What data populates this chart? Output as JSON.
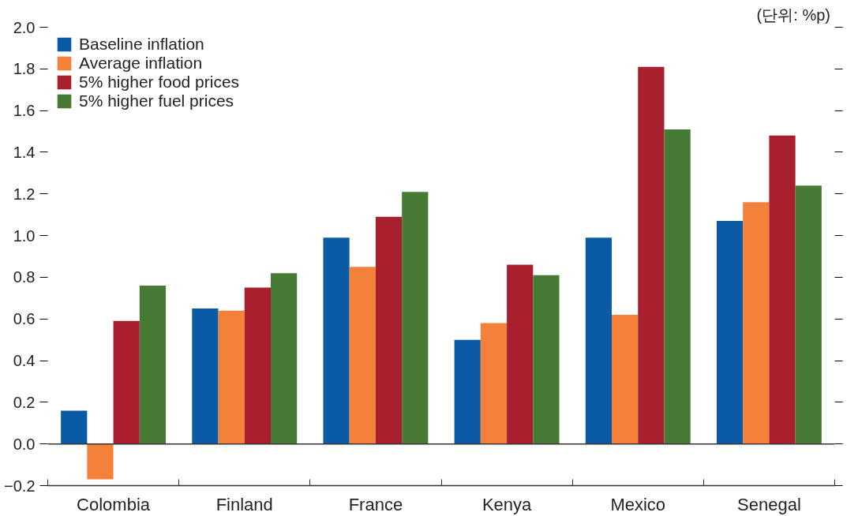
{
  "chart_data": {
    "type": "bar",
    "categories": [
      "Colombia",
      "Finland",
      "France",
      "Kenya",
      "Mexico",
      "Senegal"
    ],
    "series": [
      {
        "name": "Baseline inflation",
        "color": "#0a5aa6",
        "values": [
          0.16,
          0.65,
          0.99,
          0.5,
          0.99,
          1.07
        ]
      },
      {
        "name": "Average inflation",
        "color": "#f4813a",
        "values": [
          -0.17,
          0.64,
          0.85,
          0.58,
          0.62,
          1.16
        ]
      },
      {
        "name": "5% higher food prices",
        "color": "#a81f2d",
        "values": [
          0.59,
          0.75,
          1.09,
          0.86,
          1.81,
          1.48
        ]
      },
      {
        "name": "5% higher fuel prices",
        "color": "#477a35",
        "values": [
          0.76,
          0.82,
          1.21,
          0.81,
          1.51,
          1.24
        ]
      }
    ],
    "ylim": [
      -0.2,
      2.0
    ],
    "yticks": [
      {
        "value": -0.2,
        "label": "−0.2"
      },
      {
        "value": 0.0,
        "label": "0.0"
      },
      {
        "value": 0.2,
        "label": "0.2"
      },
      {
        "value": 0.4,
        "label": "0.4"
      },
      {
        "value": 0.6,
        "label": "0.6"
      },
      {
        "value": 0.8,
        "label": "0.8"
      },
      {
        "value": 1.0,
        "label": "1.0"
      },
      {
        "value": 1.2,
        "label": "1.2"
      },
      {
        "value": 1.4,
        "label": "1.4"
      },
      {
        "value": 1.6,
        "label": "1.6"
      },
      {
        "value": 1.8,
        "label": "1.8"
      },
      {
        "value": 2.0,
        "label": "2.0"
      }
    ],
    "ref_lines": [
      {
        "axis": "y",
        "value": 0
      }
    ],
    "annotations": [
      "(단위:  %p)"
    ],
    "legend": "top left",
    "grid": false
  }
}
